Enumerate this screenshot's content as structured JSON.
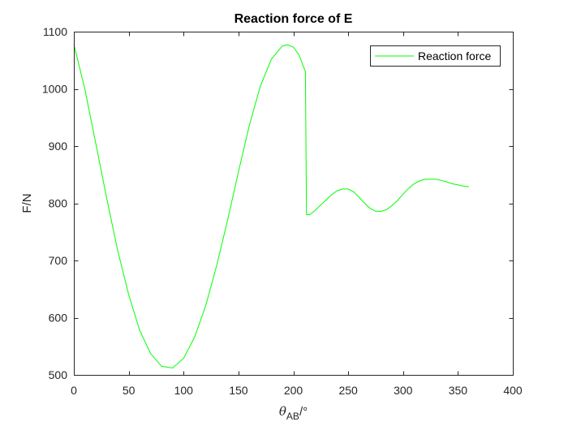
{
  "chart_data": {
    "type": "line",
    "title": "Reaction force of E",
    "xlabel": {
      "symbol": "θ",
      "subscript": "AB",
      "unit": "/°"
    },
    "ylabel": "F/N",
    "xlim": [
      0,
      400
    ],
    "ylim": [
      500,
      1100
    ],
    "xticks": [
      0,
      50,
      100,
      150,
      200,
      250,
      300,
      350,
      400
    ],
    "yticks": [
      500,
      600,
      700,
      800,
      900,
      1000,
      1100
    ],
    "grid": false,
    "legend_position": "top-right",
    "series": [
      {
        "name": "Reaction force",
        "color": "#00ff00",
        "x": [
          0,
          10,
          20,
          30,
          40,
          50,
          60,
          70,
          80,
          90,
          100,
          110,
          120,
          130,
          140,
          150,
          160,
          170,
          180,
          190,
          195,
          200,
          205,
          210,
          211,
          212,
          215,
          220,
          225,
          230,
          235,
          240,
          245,
          250,
          255,
          260,
          265,
          270,
          275,
          280,
          285,
          290,
          295,
          300,
          305,
          310,
          315,
          320,
          325,
          330,
          335,
          340,
          345,
          350,
          355,
          360
        ],
        "y": [
          1078,
          1000,
          905,
          808,
          717,
          640,
          578,
          537,
          515,
          512,
          529,
          566,
          620,
          690,
          770,
          855,
          937,
          1005,
          1052,
          1075,
          1077,
          1073,
          1060,
          1035,
          1030,
          780,
          780,
          788,
          797,
          806,
          815,
          822,
          825,
          825,
          820,
          810,
          800,
          791,
          786,
          786,
          789,
          796,
          805,
          816,
          826,
          834,
          839,
          842,
          842,
          842,
          840,
          837,
          834,
          832,
          830,
          829
        ]
      }
    ]
  }
}
